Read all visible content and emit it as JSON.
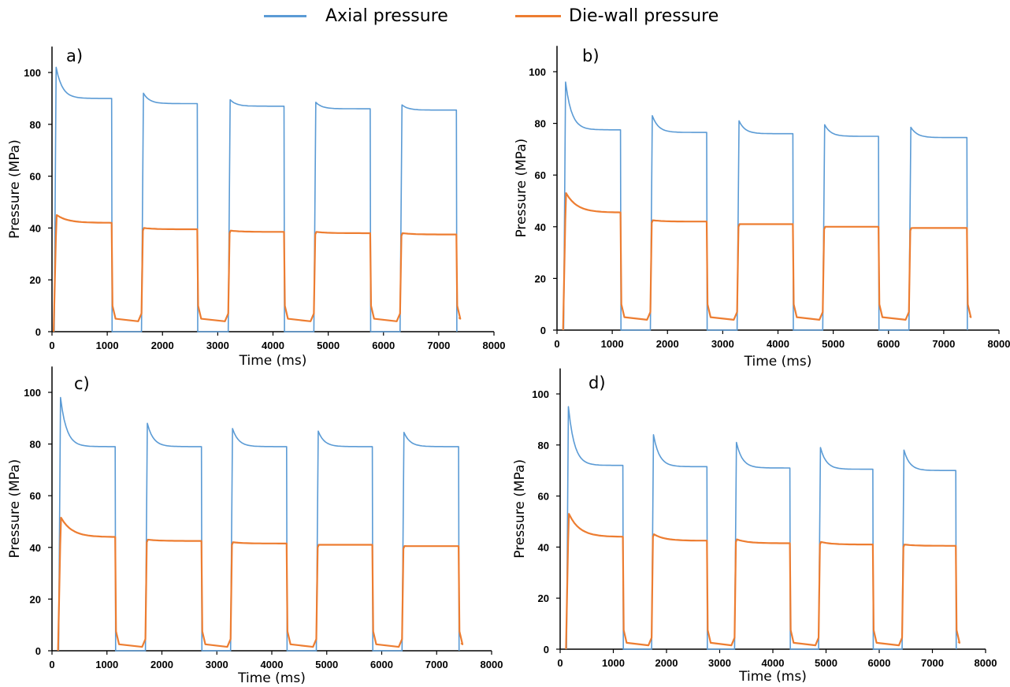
{
  "legend": {
    "series_a_label": "Axial pressure",
    "series_b_label": "Die-wall pressure",
    "series_a_color": "#5b9bd5",
    "series_b_color": "#ed7d31"
  },
  "chart_data": [
    {
      "type": "line",
      "panel_label": "a)",
      "xlabel": "Time (ms)",
      "ylabel": "Pressure (MPa)",
      "xlim": [
        0,
        8000
      ],
      "ylim": [
        0,
        110
      ],
      "x_ticks": [
        0,
        1000,
        2000,
        3000,
        4000,
        5000,
        6000,
        7000,
        8000
      ],
      "y_ticks": [
        0,
        20,
        40,
        60,
        80,
        100
      ],
      "cycles": [
        {
          "start": 40,
          "end": 1080,
          "axial_peak": 102,
          "axial_end": 90,
          "diewall_peak": 45,
          "diewall_end": 42
        },
        {
          "start": 1620,
          "end": 2630,
          "axial_peak": 92,
          "axial_end": 88,
          "diewall_peak": 40,
          "diewall_end": 39.5
        },
        {
          "start": 3190,
          "end": 4200,
          "axial_peak": 89.5,
          "axial_end": 87,
          "diewall_peak": 39,
          "diewall_end": 38.5
        },
        {
          "start": 4740,
          "end": 5760,
          "axial_peak": 88.5,
          "axial_end": 86,
          "diewall_peak": 38.5,
          "diewall_end": 38
        },
        {
          "start": 6300,
          "end": 7320,
          "axial_peak": 87.5,
          "axial_end": 85.5,
          "diewall_peak": 38,
          "diewall_end": 37.5
        }
      ],
      "diewall_valley": 4,
      "series": [
        {
          "name": "Axial pressure",
          "color": "#5b9bd5"
        },
        {
          "name": "Die-wall pressure",
          "color": "#ed7d31"
        }
      ]
    },
    {
      "type": "line",
      "panel_label": "b)",
      "xlabel": "Time (ms)",
      "ylabel": "Pressure (MPa)",
      "xlim": [
        0,
        8000
      ],
      "ylim": [
        0,
        110
      ],
      "x_ticks": [
        0,
        1000,
        2000,
        3000,
        4000,
        5000,
        6000,
        7000,
        8000
      ],
      "y_ticks": [
        0,
        20,
        40,
        60,
        80,
        100
      ],
      "cycles": [
        {
          "start": 120,
          "end": 1150,
          "axial_peak": 96,
          "axial_end": 77.5,
          "diewall_peak": 53,
          "diewall_end": 45.5
        },
        {
          "start": 1690,
          "end": 2710,
          "axial_peak": 83,
          "axial_end": 76.5,
          "diewall_peak": 42.5,
          "diewall_end": 42
        },
        {
          "start": 3260,
          "end": 4270,
          "axial_peak": 81,
          "axial_end": 76,
          "diewall_peak": 41,
          "diewall_end": 41
        },
        {
          "start": 4810,
          "end": 5820,
          "axial_peak": 79.5,
          "axial_end": 75,
          "diewall_peak": 40,
          "diewall_end": 40
        },
        {
          "start": 6370,
          "end": 7420,
          "axial_peak": 78.5,
          "axial_end": 74.5,
          "diewall_peak": 39.5,
          "diewall_end": 39.5
        }
      ],
      "diewall_valley": 4,
      "series": [
        {
          "name": "Axial pressure",
          "color": "#5b9bd5"
        },
        {
          "name": "Die-wall pressure",
          "color": "#ed7d31"
        }
      ]
    },
    {
      "type": "line",
      "panel_label": "c)",
      "xlabel": "Time (ms)",
      "ylabel": "Pressure (MPa)",
      "xlim": [
        0,
        8000
      ],
      "ylim": [
        0,
        110
      ],
      "x_ticks": [
        0,
        1000,
        2000,
        3000,
        4000,
        5000,
        6000,
        7000,
        8000
      ],
      "y_ticks": [
        0,
        20,
        40,
        60,
        80,
        100
      ],
      "cycles": [
        {
          "start": 120,
          "end": 1150,
          "axial_peak": 98,
          "axial_end": 79,
          "diewall_peak": 51.5,
          "diewall_end": 44
        },
        {
          "start": 1700,
          "end": 2720,
          "axial_peak": 88,
          "axial_end": 79,
          "diewall_peak": 43,
          "diewall_end": 42.5
        },
        {
          "start": 3250,
          "end": 4270,
          "axial_peak": 86,
          "axial_end": 79,
          "diewall_peak": 42,
          "diewall_end": 41.5
        },
        {
          "start": 4810,
          "end": 5830,
          "axial_peak": 85,
          "axial_end": 79,
          "diewall_peak": 41,
          "diewall_end": 41
        },
        {
          "start": 6370,
          "end": 7400,
          "axial_peak": 84.5,
          "axial_end": 79,
          "diewall_peak": 40.5,
          "diewall_end": 40.5
        }
      ],
      "diewall_valley": 1.5,
      "series": [
        {
          "name": "Axial pressure",
          "color": "#5b9bd5"
        },
        {
          "name": "Die-wall pressure",
          "color": "#ed7d31"
        }
      ]
    },
    {
      "type": "line",
      "panel_label": "d)",
      "xlabel": "Time (ms)",
      "ylabel": "Pressure (MPa)",
      "xlim": [
        0,
        8000
      ],
      "ylim": [
        0,
        110
      ],
      "x_ticks": [
        0,
        1000,
        2000,
        3000,
        4000,
        5000,
        6000,
        7000,
        8000
      ],
      "y_ticks": [
        0,
        20,
        40,
        60,
        80,
        100
      ],
      "cycles": [
        {
          "start": 120,
          "end": 1180,
          "axial_peak": 95,
          "axial_end": 72,
          "diewall_peak": 53,
          "diewall_end": 44
        },
        {
          "start": 1720,
          "end": 2760,
          "axial_peak": 84,
          "axial_end": 71.5,
          "diewall_peak": 45,
          "diewall_end": 42.5
        },
        {
          "start": 3280,
          "end": 4320,
          "axial_peak": 81,
          "axial_end": 71,
          "diewall_peak": 43,
          "diewall_end": 41.5
        },
        {
          "start": 4860,
          "end": 5880,
          "axial_peak": 79,
          "axial_end": 70.5,
          "diewall_peak": 42,
          "diewall_end": 41
        },
        {
          "start": 6430,
          "end": 7440,
          "axial_peak": 78,
          "axial_end": 70,
          "diewall_peak": 41,
          "diewall_end": 40.5
        }
      ],
      "diewall_valley": 1.5,
      "series": [
        {
          "name": "Axial pressure",
          "color": "#5b9bd5"
        },
        {
          "name": "Die-wall pressure",
          "color": "#ed7d31"
        }
      ]
    }
  ]
}
